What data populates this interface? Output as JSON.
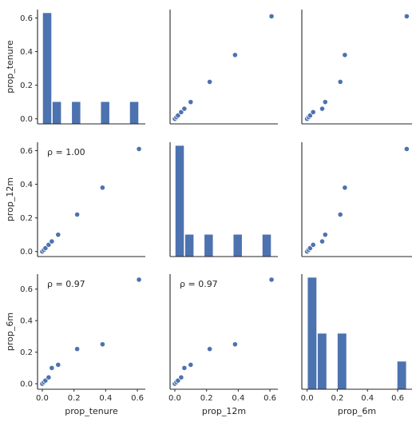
{
  "colors": {
    "mark": "#4c72b0",
    "bar": "#4c72b0",
    "marker_edge": "#ffffff",
    "axis": "#262626",
    "background": "#ffffff"
  },
  "chart_data": {
    "type": "scatter",
    "kind": "pairplot",
    "variables": [
      "prop_tenure",
      "prop_12m",
      "prop_6m"
    ],
    "points": {
      "prop_tenure": [
        0.0,
        0.01,
        0.02,
        0.04,
        0.06,
        0.1,
        0.22,
        0.38,
        0.61
      ],
      "prop_12m": [
        0.0,
        0.01,
        0.02,
        0.04,
        0.06,
        0.1,
        0.22,
        0.38,
        0.61
      ],
      "prop_6m": [
        0.0,
        0.01,
        0.02,
        0.04,
        0.1,
        0.12,
        0.22,
        0.25,
        0.66
      ]
    },
    "histograms": [
      {
        "variable": "prop_tenure",
        "bins": [
          0.0,
          0.061,
          0.122,
          0.183,
          0.244,
          0.305,
          0.366,
          0.427,
          0.488,
          0.549,
          0.61
        ],
        "counts": [
          5,
          1,
          0,
          1,
          0,
          0,
          1,
          0,
          0,
          1
        ]
      },
      {
        "variable": "prop_12m",
        "bins": [
          0.0,
          0.061,
          0.122,
          0.183,
          0.244,
          0.305,
          0.366,
          0.427,
          0.488,
          0.549,
          0.61
        ],
        "counts": [
          5,
          1,
          0,
          1,
          0,
          0,
          1,
          0,
          0,
          1
        ]
      },
      {
        "variable": "prop_6m",
        "bins": [
          0.0,
          0.066,
          0.132,
          0.198,
          0.264,
          0.33,
          0.396,
          0.462,
          0.528,
          0.594,
          0.66
        ],
        "counts": [
          4,
          2,
          0,
          2,
          0,
          0,
          0,
          0,
          0,
          1
        ]
      }
    ],
    "annotations": [
      {
        "row": 1,
        "col": 0,
        "text": "ρ = 1.00"
      },
      {
        "row": 2,
        "col": 0,
        "text": "ρ = 0.97"
      },
      {
        "row": 2,
        "col": 1,
        "text": "ρ = 0.97"
      }
    ],
    "axis_labels": {
      "rows": [
        "prop_tenure",
        "prop_12m",
        "prop_6m"
      ],
      "cols": [
        "prop_tenure",
        "prop_12m",
        "prop_6m"
      ]
    },
    "ranges": {
      "prop_tenure": [
        -0.03,
        0.65
      ],
      "prop_12m": [
        -0.03,
        0.65
      ],
      "prop_6m": [
        -0.035,
        0.695
      ]
    },
    "ticks": {
      "y_prop_tenure": [
        0.0,
        0.2,
        0.4,
        0.6
      ],
      "y_prop_12m": [
        0.0,
        0.2,
        0.4,
        0.6
      ],
      "y_prop_6m": [
        0.0,
        0.2,
        0.4,
        0.6
      ],
      "x_prop_tenure": [
        0.0,
        0.2,
        0.4,
        0.6
      ],
      "x_prop_12m": [
        0.0,
        0.2,
        0.4,
        0.6
      ],
      "x_prop_6m": [
        0.0,
        0.2,
        0.4,
        0.6
      ]
    },
    "tick_labels": {
      "y_prop_tenure": [
        "0.0",
        "0.2",
        "0.4",
        "0.6"
      ],
      "y_prop_12m": [
        "0.0",
        "0.2",
        "0.4",
        "0.6"
      ],
      "y_prop_6m": [
        "0.0",
        "0.2",
        "0.4",
        "0.6"
      ],
      "x_prop_tenure": [
        "0.0",
        "0.2",
        "0.4",
        "0.6"
      ],
      "x_prop_12m": [
        "0.0",
        "0.2",
        "0.4",
        "0.6"
      ],
      "x_prop_6m": [
        "0.0",
        "0.2",
        "0.4",
        "0.6"
      ]
    },
    "grid": false,
    "legend": "none"
  }
}
